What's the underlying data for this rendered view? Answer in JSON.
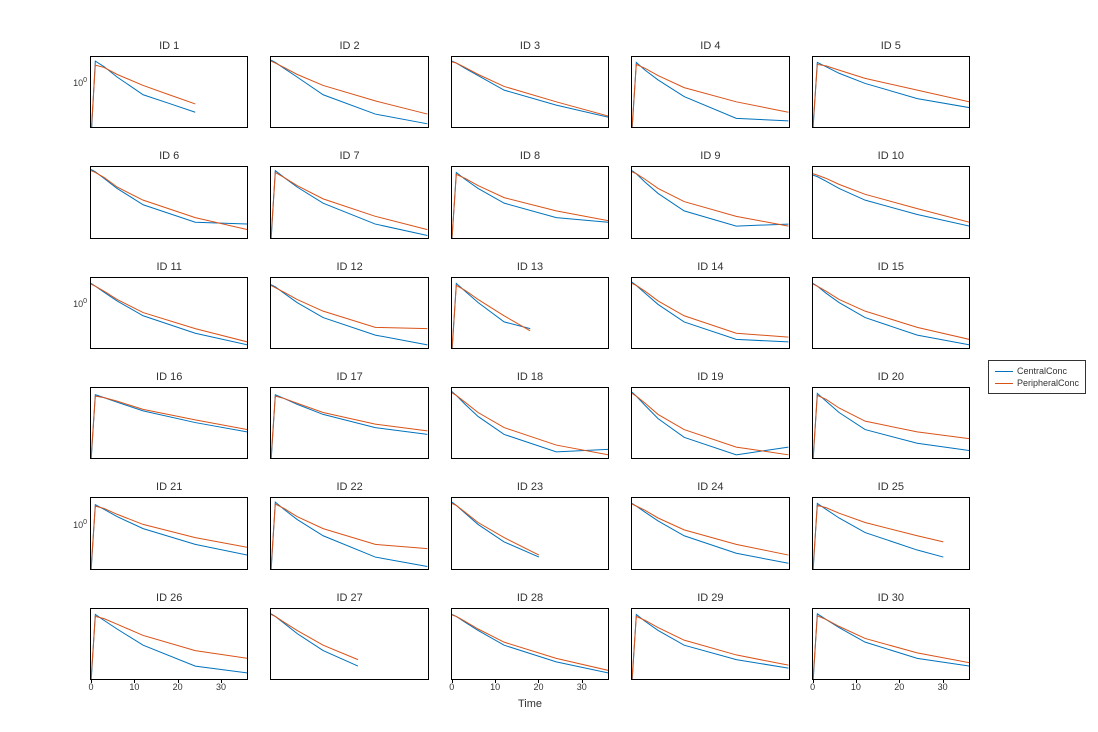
{
  "figure": {
    "background_color": "#ffffff",
    "panel_border_color": "#000000",
    "title_fontsize": 11,
    "tick_fontsize": 9,
    "xlabel": "Time",
    "xlabel_fontsize": 11,
    "nrows": 6,
    "ncols": 5,
    "xlim": [
      0,
      36
    ],
    "ylim_log10": [
      -1.0,
      0.6
    ],
    "xticks": [
      0,
      10,
      20,
      30
    ],
    "ytick_label": "10",
    "ytick_exp": "0",
    "ytick_log10_value": 0,
    "series_colors": {
      "CentralConc": "#0072bd",
      "PeripheralConc": "#d95319"
    },
    "line_width": 1.0
  },
  "legend": {
    "items": [
      {
        "label": "CentralConc",
        "color": "#0072bd"
      },
      {
        "label": "PeripheralConc",
        "color": "#d95319"
      }
    ]
  },
  "subjects": [
    {
      "id": 1,
      "title": "ID 1",
      "x": [
        0,
        1,
        3,
        6,
        12,
        18,
        24
      ],
      "central": [
        0.05,
        3.2,
        2.4,
        1.4,
        0.55,
        0.35,
        0.22
      ],
      "periph": [
        0.07,
        2.6,
        2.3,
        1.6,
        0.9,
        0.55,
        0.34
      ]
    },
    {
      "id": 2,
      "title": "ID 2",
      "x": [
        0,
        1,
        3,
        6,
        12,
        24,
        36
      ],
      "central": [
        3.4,
        3.0,
        2.2,
        1.4,
        0.55,
        0.2,
        0.12
      ],
      "periph": [
        3.2,
        2.9,
        2.3,
        1.6,
        0.9,
        0.4,
        0.2
      ]
    },
    {
      "id": 3,
      "title": "ID 3",
      "x": [
        0,
        1,
        3,
        6,
        12,
        24,
        36
      ],
      "central": [
        3.2,
        2.9,
        2.2,
        1.5,
        0.7,
        0.32,
        0.17
      ],
      "periph": [
        3.1,
        2.9,
        2.3,
        1.6,
        0.85,
        0.38,
        0.18
      ]
    },
    {
      "id": 4,
      "title": "ID 4",
      "x": [
        0,
        1,
        3,
        6,
        12,
        24,
        36
      ],
      "central": [
        0.08,
        3.0,
        2.0,
        1.2,
        0.5,
        0.16,
        0.14
      ],
      "periph": [
        0.1,
        2.7,
        2.2,
        1.5,
        0.8,
        0.38,
        0.22
      ]
    },
    {
      "id": 5,
      "title": "ID 5",
      "x": [
        0,
        1,
        3,
        6,
        12,
        24,
        36
      ],
      "central": [
        0.09,
        3.0,
        2.4,
        1.7,
        1.0,
        0.45,
        0.28
      ],
      "periph": [
        0.11,
        2.7,
        2.5,
        2.0,
        1.3,
        0.7,
        0.38
      ]
    },
    {
      "id": 6,
      "title": "ID 6",
      "x": [
        0,
        1,
        3,
        6,
        12,
        24,
        36
      ],
      "central": [
        3.5,
        3.1,
        2.2,
        1.3,
        0.55,
        0.22,
        0.2
      ],
      "periph": [
        3.3,
        3.0,
        2.3,
        1.4,
        0.7,
        0.28,
        0.15
      ]
    },
    {
      "id": 7,
      "title": "ID 7",
      "x": [
        0,
        1,
        3,
        6,
        12,
        24,
        36
      ],
      "central": [
        0.08,
        3.3,
        2.3,
        1.4,
        0.6,
        0.2,
        0.11
      ],
      "periph": [
        0.1,
        3.0,
        2.3,
        1.5,
        0.75,
        0.3,
        0.15
      ]
    },
    {
      "id": 8,
      "title": "ID 8",
      "x": [
        0,
        1,
        3,
        6,
        12,
        24,
        36
      ],
      "central": [
        0.09,
        3.0,
        2.1,
        1.3,
        0.6,
        0.28,
        0.22
      ],
      "periph": [
        0.1,
        2.7,
        2.2,
        1.5,
        0.8,
        0.4,
        0.24
      ]
    },
    {
      "id": 9,
      "title": "ID 9",
      "x": [
        0,
        1,
        3,
        6,
        12,
        24,
        36
      ],
      "central": [
        3.3,
        2.8,
        1.8,
        1.0,
        0.4,
        0.18,
        0.2
      ],
      "periph": [
        3.1,
        2.8,
        2.1,
        1.3,
        0.65,
        0.3,
        0.18
      ]
    },
    {
      "id": 10,
      "title": "ID 10",
      "x": [
        0,
        1,
        3,
        6,
        12,
        24,
        36
      ],
      "central": [
        2.6,
        2.4,
        1.9,
        1.3,
        0.7,
        0.33,
        0.18
      ],
      "periph": [
        2.8,
        2.6,
        2.2,
        1.6,
        0.95,
        0.45,
        0.22
      ]
    },
    {
      "id": 11,
      "title": "ID 11",
      "x": [
        0,
        1,
        3,
        6,
        12,
        24,
        36
      ],
      "central": [
        3.0,
        2.6,
        1.9,
        1.2,
        0.55,
        0.22,
        0.12
      ],
      "periph": [
        2.9,
        2.6,
        2.0,
        1.3,
        0.65,
        0.28,
        0.14
      ]
    },
    {
      "id": 12,
      "title": "ID 12",
      "x": [
        0,
        1,
        3,
        6,
        12,
        24,
        36
      ],
      "central": [
        2.8,
        2.5,
        1.8,
        1.1,
        0.5,
        0.2,
        0.12
      ],
      "periph": [
        2.7,
        2.4,
        1.9,
        1.3,
        0.7,
        0.3,
        0.28
      ]
    },
    {
      "id": 13,
      "title": "ID 13",
      "x": [
        0,
        1,
        3,
        6,
        12,
        18
      ],
      "central": [
        0.08,
        3.0,
        2.0,
        1.1,
        0.4,
        0.28
      ],
      "periph": [
        0.1,
        2.7,
        2.1,
        1.3,
        0.55,
        0.25
      ]
    },
    {
      "id": 14,
      "title": "ID 14",
      "x": [
        0,
        1,
        3,
        6,
        12,
        24,
        36
      ],
      "central": [
        3.2,
        2.7,
        1.8,
        1.0,
        0.4,
        0.16,
        0.14
      ],
      "periph": [
        3.0,
        2.7,
        2.0,
        1.2,
        0.55,
        0.22,
        0.18
      ]
    },
    {
      "id": 15,
      "title": "ID 15",
      "x": [
        0,
        1,
        3,
        6,
        12,
        24,
        36
      ],
      "central": [
        3.0,
        2.6,
        1.8,
        1.1,
        0.5,
        0.2,
        0.12
      ],
      "periph": [
        2.9,
        2.6,
        2.0,
        1.3,
        0.7,
        0.3,
        0.16
      ]
    },
    {
      "id": 16,
      "title": "ID 16",
      "x": [
        0,
        1,
        3,
        6,
        12,
        24,
        36
      ],
      "central": [
        0.08,
        2.8,
        2.4,
        1.9,
        1.2,
        0.65,
        0.4
      ],
      "periph": [
        0.1,
        2.6,
        2.4,
        2.0,
        1.3,
        0.75,
        0.45
      ]
    },
    {
      "id": 17,
      "title": "ID 17",
      "x": [
        0,
        1,
        3,
        6,
        12,
        24,
        36
      ],
      "central": [
        0.08,
        2.8,
        2.3,
        1.7,
        1.0,
        0.5,
        0.35
      ],
      "periph": [
        0.1,
        2.6,
        2.3,
        1.8,
        1.1,
        0.6,
        0.42
      ]
    },
    {
      "id": 18,
      "title": "ID 18",
      "x": [
        0,
        1,
        3,
        6,
        12,
        24,
        36
      ],
      "central": [
        3.3,
        2.7,
        1.7,
        0.9,
        0.35,
        0.14,
        0.16
      ],
      "periph": [
        3.1,
        2.7,
        1.9,
        1.1,
        0.5,
        0.2,
        0.12
      ]
    },
    {
      "id": 19,
      "title": "ID 19",
      "x": [
        0,
        1,
        3,
        6,
        12,
        24,
        36
      ],
      "central": [
        3.2,
        2.6,
        1.6,
        0.8,
        0.3,
        0.12,
        0.18
      ],
      "periph": [
        3.0,
        2.6,
        1.8,
        1.0,
        0.45,
        0.18,
        0.12
      ]
    },
    {
      "id": 20,
      "title": "ID 20",
      "x": [
        0,
        1,
        3,
        6,
        12,
        24,
        36
      ],
      "central": [
        0.08,
        3.0,
        2.0,
        1.1,
        0.45,
        0.22,
        0.15
      ],
      "periph": [
        0.1,
        2.7,
        2.2,
        1.4,
        0.7,
        0.4,
        0.28
      ]
    },
    {
      "id": 21,
      "title": "ID 21",
      "x": [
        0,
        1,
        3,
        6,
        12,
        24,
        36
      ],
      "central": [
        0.08,
        2.8,
        2.2,
        1.5,
        0.8,
        0.35,
        0.2
      ],
      "periph": [
        0.1,
        2.6,
        2.3,
        1.7,
        1.0,
        0.5,
        0.3
      ]
    },
    {
      "id": 22,
      "title": "ID 22",
      "x": [
        0,
        1,
        3,
        6,
        12,
        24,
        36
      ],
      "central": [
        0.08,
        3.2,
        2.2,
        1.3,
        0.55,
        0.18,
        0.11
      ],
      "periph": [
        0.1,
        2.9,
        2.3,
        1.5,
        0.8,
        0.35,
        0.28
      ]
    },
    {
      "id": 23,
      "title": "ID 23",
      "x": [
        0,
        1,
        3,
        6,
        12,
        20
      ],
      "central": [
        3.2,
        2.7,
        1.8,
        1.0,
        0.4,
        0.18
      ],
      "periph": [
        3.0,
        2.7,
        1.9,
        1.1,
        0.5,
        0.2
      ]
    },
    {
      "id": 24,
      "title": "ID 24",
      "x": [
        0,
        1,
        3,
        6,
        12,
        24,
        36
      ],
      "central": [
        3.0,
        2.6,
        1.9,
        1.2,
        0.55,
        0.22,
        0.13
      ],
      "periph": [
        2.9,
        2.6,
        2.1,
        1.4,
        0.75,
        0.35,
        0.2
      ]
    },
    {
      "id": 25,
      "title": "ID 25",
      "x": [
        0,
        1,
        3,
        6,
        12,
        24,
        30
      ],
      "central": [
        0.08,
        3.0,
        2.2,
        1.4,
        0.65,
        0.26,
        0.18
      ],
      "periph": [
        0.1,
        2.7,
        2.4,
        1.8,
        1.1,
        0.55,
        0.4
      ]
    },
    {
      "id": 26,
      "title": "ID 26",
      "x": [
        0,
        1,
        3,
        6,
        12,
        24,
        36
      ],
      "central": [
        0.08,
        3.0,
        2.2,
        1.4,
        0.6,
        0.2,
        0.14
      ],
      "periph": [
        0.1,
        2.7,
        2.4,
        1.8,
        1.0,
        0.45,
        0.3
      ]
    },
    {
      "id": 27,
      "title": "ID 27",
      "x": [
        0,
        1,
        3,
        6,
        12,
        20
      ],
      "central": [
        3.1,
        2.7,
        1.9,
        1.1,
        0.45,
        0.2
      ],
      "periph": [
        3.0,
        2.7,
        2.0,
        1.3,
        0.6,
        0.28
      ]
    },
    {
      "id": 28,
      "title": "ID 28",
      "x": [
        0,
        1,
        3,
        6,
        12,
        24,
        36
      ],
      "central": [
        3.0,
        2.7,
        2.0,
        1.3,
        0.6,
        0.25,
        0.14
      ],
      "periph": [
        2.9,
        2.7,
        2.1,
        1.4,
        0.7,
        0.3,
        0.16
      ]
    },
    {
      "id": 29,
      "title": "ID 29",
      "x": [
        0,
        1,
        3,
        6,
        12,
        24,
        36
      ],
      "central": [
        0.08,
        3.0,
        2.1,
        1.3,
        0.6,
        0.28,
        0.18
      ],
      "periph": [
        0.1,
        2.7,
        2.2,
        1.5,
        0.78,
        0.36,
        0.21
      ]
    },
    {
      "id": 30,
      "title": "ID 30",
      "x": [
        0,
        1,
        3,
        6,
        12,
        24,
        36
      ],
      "central": [
        0.08,
        3.1,
        2.3,
        1.5,
        0.7,
        0.3,
        0.2
      ],
      "periph": [
        0.1,
        2.8,
        2.3,
        1.6,
        0.85,
        0.4,
        0.24
      ]
    }
  ]
}
